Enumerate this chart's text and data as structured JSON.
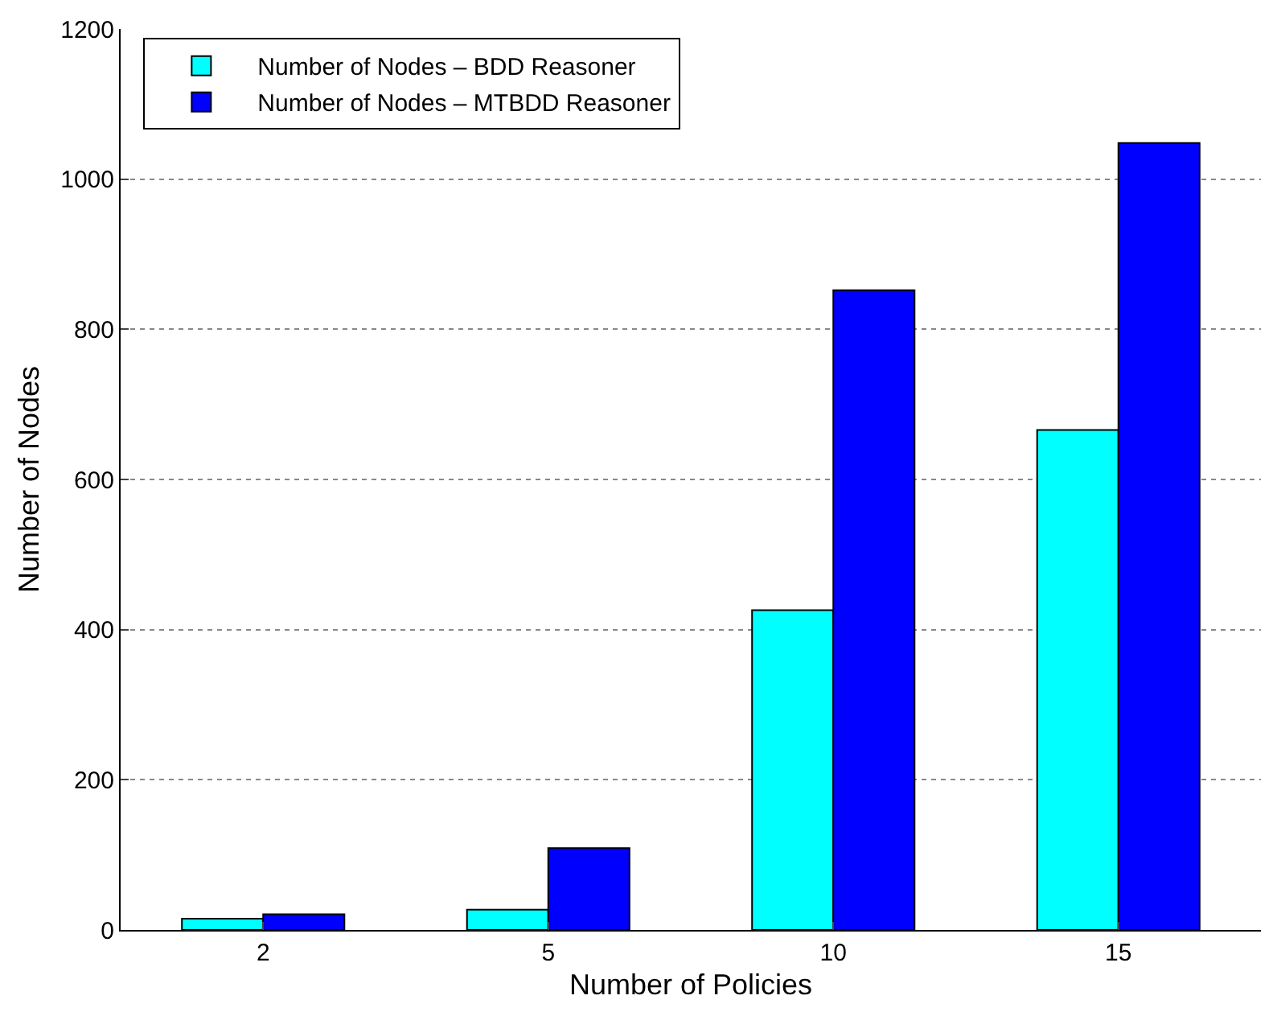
{
  "chart_data": {
    "type": "bar",
    "xlabel": "Number of Policies",
    "ylabel": "Number of Nodes",
    "categories": [
      "2",
      "5",
      "10",
      "15"
    ],
    "series": [
      {
        "name": "Number of Nodes – BDD Reasoner",
        "color": "#00ffff",
        "values": [
          15,
          27,
          426,
          666
        ]
      },
      {
        "name": "Number of Nodes – MTBDD Reasoner",
        "color": "#0000ff",
        "values": [
          21,
          109,
          852,
          1048
        ]
      }
    ],
    "ylim": [
      0,
      1200
    ],
    "yticks": [
      0,
      200,
      400,
      600,
      800,
      1000,
      1200
    ],
    "grid": "y",
    "legend": "top left"
  }
}
